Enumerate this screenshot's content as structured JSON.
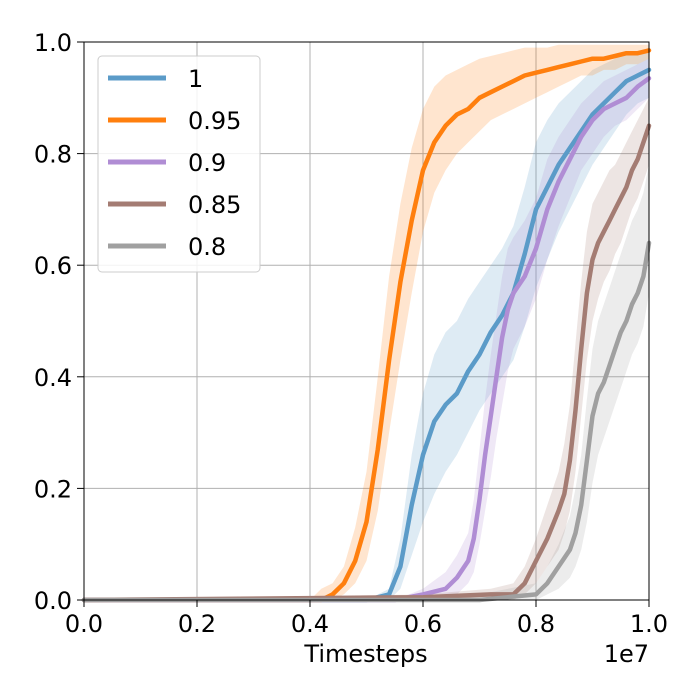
{
  "chart_data": {
    "type": "line",
    "title": "",
    "xlabel": "Timesteps",
    "ylabel": "",
    "x_offset_label": "1e7",
    "xlim": [
      0.0,
      1.0
    ],
    "ylim": [
      0.0,
      1.0
    ],
    "x_ticks": [
      0.0,
      0.2,
      0.4,
      0.6,
      0.8,
      1.0
    ],
    "x_tick_labels": [
      "0.0",
      "0.2",
      "0.4",
      "0.6",
      "0.8",
      "1.0"
    ],
    "y_ticks": [
      0.0,
      0.2,
      0.4,
      0.6,
      0.8,
      1.0
    ],
    "y_tick_labels": [
      "0.0",
      "0.2",
      "0.4",
      "0.6",
      "0.8",
      "1.0"
    ],
    "grid": true,
    "legend_position": "top-left",
    "series": [
      {
        "name": "1",
        "color": "#5b9bc8",
        "x": [
          0.0,
          0.5,
          0.54,
          0.56,
          0.58,
          0.6,
          0.62,
          0.64,
          0.66,
          0.68,
          0.7,
          0.72,
          0.74,
          0.76,
          0.78,
          0.8,
          0.82,
          0.84,
          0.86,
          0.88,
          0.9,
          0.92,
          0.94,
          0.96,
          0.98,
          1.0
        ],
        "y": [
          0.0,
          0.0,
          0.01,
          0.06,
          0.17,
          0.26,
          0.32,
          0.35,
          0.37,
          0.41,
          0.44,
          0.48,
          0.51,
          0.55,
          0.62,
          0.7,
          0.74,
          0.78,
          0.81,
          0.84,
          0.87,
          0.89,
          0.91,
          0.93,
          0.94,
          0.95
        ],
        "lower": [
          0.0,
          0.0,
          0.0,
          0.02,
          0.08,
          0.14,
          0.19,
          0.23,
          0.26,
          0.3,
          0.34,
          0.37,
          0.4,
          0.43,
          0.49,
          0.56,
          0.61,
          0.66,
          0.7,
          0.74,
          0.78,
          0.81,
          0.84,
          0.87,
          0.89,
          0.9
        ],
        "upper": [
          0.0,
          0.0,
          0.02,
          0.11,
          0.26,
          0.37,
          0.44,
          0.48,
          0.5,
          0.54,
          0.57,
          0.6,
          0.63,
          0.67,
          0.74,
          0.82,
          0.86,
          0.89,
          0.91,
          0.93,
          0.95,
          0.96,
          0.97,
          0.98,
          0.98,
          0.99
        ]
      },
      {
        "name": "0.95",
        "color": "#ff7f0e",
        "x": [
          0.0,
          0.4,
          0.42,
          0.44,
          0.46,
          0.48,
          0.5,
          0.52,
          0.54,
          0.56,
          0.58,
          0.6,
          0.62,
          0.64,
          0.66,
          0.68,
          0.7,
          0.72,
          0.74,
          0.76,
          0.78,
          0.8,
          0.82,
          0.84,
          0.86,
          0.88,
          0.9,
          0.92,
          0.94,
          0.96,
          0.98,
          1.0
        ],
        "y": [
          0.0,
          0.0,
          0.0,
          0.01,
          0.03,
          0.07,
          0.14,
          0.27,
          0.43,
          0.57,
          0.68,
          0.77,
          0.82,
          0.85,
          0.87,
          0.88,
          0.9,
          0.91,
          0.92,
          0.93,
          0.94,
          0.945,
          0.95,
          0.955,
          0.96,
          0.965,
          0.97,
          0.97,
          0.975,
          0.98,
          0.98,
          0.985
        ],
        "lower": [
          0.0,
          0.0,
          0.0,
          0.0,
          0.01,
          0.03,
          0.07,
          0.16,
          0.3,
          0.43,
          0.55,
          0.66,
          0.73,
          0.77,
          0.8,
          0.82,
          0.84,
          0.86,
          0.87,
          0.88,
          0.89,
          0.9,
          0.91,
          0.92,
          0.93,
          0.94,
          0.94,
          0.95,
          0.95,
          0.96,
          0.96,
          0.97
        ],
        "upper": [
          0.0,
          0.0,
          0.02,
          0.03,
          0.06,
          0.13,
          0.23,
          0.4,
          0.58,
          0.71,
          0.81,
          0.88,
          0.92,
          0.94,
          0.95,
          0.96,
          0.97,
          0.975,
          0.98,
          0.985,
          0.99,
          0.99,
          0.99,
          0.995,
          0.995,
          0.995,
          0.995,
          0.995,
          0.995,
          0.995,
          0.995,
          0.995
        ]
      },
      {
        "name": "0.9",
        "color": "#b08dd4",
        "x": [
          0.0,
          0.55,
          0.6,
          0.64,
          0.66,
          0.68,
          0.69,
          0.7,
          0.71,
          0.72,
          0.73,
          0.74,
          0.75,
          0.76,
          0.78,
          0.8,
          0.82,
          0.84,
          0.86,
          0.88,
          0.9,
          0.92,
          0.94,
          0.96,
          0.98,
          1.0
        ],
        "y": [
          0.0,
          0.0,
          0.01,
          0.02,
          0.04,
          0.07,
          0.11,
          0.18,
          0.26,
          0.33,
          0.4,
          0.47,
          0.52,
          0.55,
          0.58,
          0.63,
          0.7,
          0.75,
          0.79,
          0.83,
          0.86,
          0.88,
          0.89,
          0.9,
          0.92,
          0.935
        ],
        "lower": [
          0.0,
          0.0,
          0.0,
          0.0,
          0.01,
          0.03,
          0.05,
          0.1,
          0.16,
          0.22,
          0.29,
          0.35,
          0.41,
          0.45,
          0.49,
          0.54,
          0.61,
          0.67,
          0.72,
          0.77,
          0.8,
          0.83,
          0.85,
          0.86,
          0.88,
          0.9
        ],
        "upper": [
          0.0,
          0.0,
          0.02,
          0.05,
          0.08,
          0.12,
          0.18,
          0.27,
          0.36,
          0.44,
          0.51,
          0.58,
          0.63,
          0.65,
          0.68,
          0.72,
          0.79,
          0.83,
          0.86,
          0.89,
          0.91,
          0.93,
          0.94,
          0.95,
          0.96,
          0.97
        ]
      },
      {
        "name": "0.85",
        "color": "#a47c73",
        "x": [
          0.0,
          0.6,
          0.72,
          0.76,
          0.78,
          0.8,
          0.82,
          0.84,
          0.85,
          0.86,
          0.87,
          0.88,
          0.89,
          0.9,
          0.91,
          0.92,
          0.93,
          0.94,
          0.95,
          0.96,
          0.97,
          0.98,
          0.99,
          1.0
        ],
        "y": [
          0.0,
          0.005,
          0.01,
          0.01,
          0.03,
          0.07,
          0.11,
          0.16,
          0.19,
          0.25,
          0.34,
          0.45,
          0.55,
          0.61,
          0.64,
          0.66,
          0.68,
          0.7,
          0.72,
          0.74,
          0.77,
          0.79,
          0.82,
          0.85
        ],
        "lower": [
          0.0,
          0.0,
          0.0,
          0.0,
          0.01,
          0.03,
          0.06,
          0.09,
          0.12,
          0.16,
          0.23,
          0.33,
          0.43,
          0.5,
          0.54,
          0.57,
          0.59,
          0.62,
          0.64,
          0.67,
          0.7,
          0.72,
          0.75,
          0.78
        ],
        "upper": [
          0.0,
          0.01,
          0.02,
          0.03,
          0.06,
          0.11,
          0.17,
          0.23,
          0.28,
          0.35,
          0.46,
          0.57,
          0.66,
          0.71,
          0.73,
          0.75,
          0.77,
          0.78,
          0.8,
          0.82,
          0.84,
          0.86,
          0.88,
          0.9
        ]
      },
      {
        "name": "0.8",
        "color": "#a0a0a0",
        "x": [
          0.0,
          0.7,
          0.8,
          0.82,
          0.84,
          0.86,
          0.87,
          0.88,
          0.89,
          0.9,
          0.91,
          0.92,
          0.93,
          0.94,
          0.95,
          0.96,
          0.97,
          0.98,
          0.99,
          1.0
        ],
        "y": [
          0.0,
          0.0,
          0.01,
          0.03,
          0.06,
          0.09,
          0.12,
          0.17,
          0.25,
          0.33,
          0.37,
          0.39,
          0.42,
          0.45,
          0.48,
          0.5,
          0.53,
          0.55,
          0.58,
          0.64
        ],
        "lower": [
          0.0,
          0.0,
          0.0,
          0.01,
          0.02,
          0.04,
          0.06,
          0.09,
          0.14,
          0.21,
          0.26,
          0.29,
          0.32,
          0.35,
          0.38,
          0.41,
          0.44,
          0.46,
          0.49,
          0.55
        ],
        "upper": [
          0.0,
          0.01,
          0.03,
          0.06,
          0.1,
          0.15,
          0.2,
          0.26,
          0.36,
          0.45,
          0.5,
          0.53,
          0.56,
          0.59,
          0.62,
          0.65,
          0.68,
          0.7,
          0.73,
          0.78
        ]
      }
    ]
  }
}
